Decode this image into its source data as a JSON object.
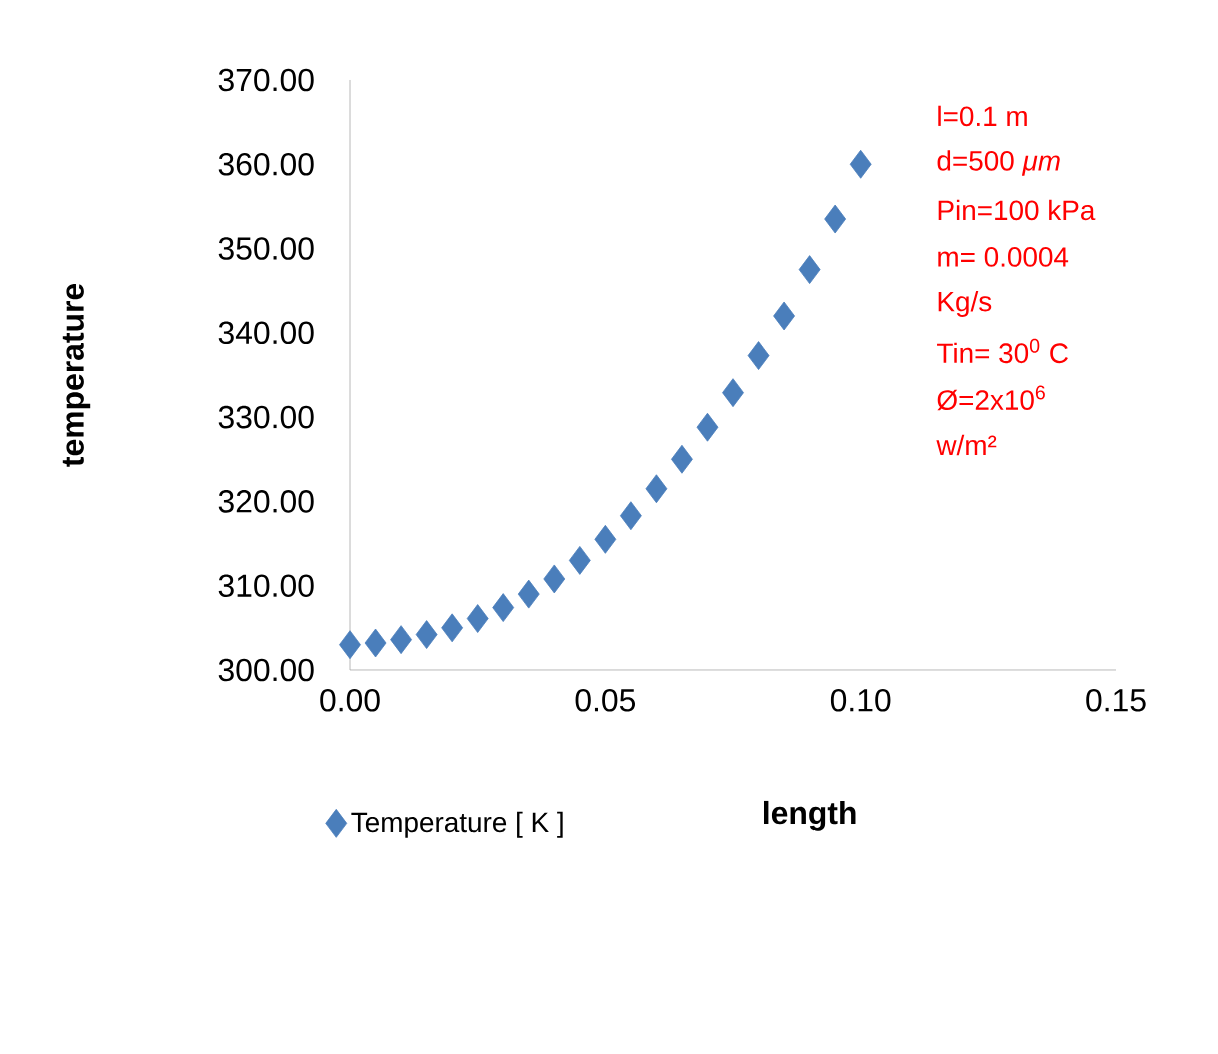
{
  "chart_data": {
    "type": "scatter",
    "xlabel": "length",
    "ylabel": "temperature",
    "x": [
      0,
      0.005,
      0.01,
      0.015,
      0.02,
      0.025,
      0.03,
      0.035,
      0.04,
      0.045,
      0.05,
      0.055,
      0.06,
      0.065,
      0.07,
      0.075,
      0.08,
      0.085,
      0.09,
      0.095,
      0.1
    ],
    "series": [
      {
        "name": "Temperature [ K ]",
        "color": "#4a7ebb",
        "values": [
          303.0,
          303.2,
          303.6,
          304.2,
          305.0,
          306.1,
          307.4,
          309.0,
          310.8,
          313.0,
          315.5,
          318.3,
          321.5,
          325.0,
          328.8,
          332.9,
          337.3,
          342.0,
          347.5,
          353.5,
          360.0
        ]
      }
    ],
    "xlim": [
      0,
      0.15
    ],
    "xticks": [
      {
        "value": 0,
        "label": "0.00"
      },
      {
        "value": 0.05,
        "label": "0.05"
      },
      {
        "value": 0.1,
        "label": "0.10"
      },
      {
        "value": 0.15,
        "label": "0.15"
      }
    ],
    "ylim": [
      300,
      370
    ],
    "yticks": [
      {
        "value": 300,
        "label": "300.00"
      },
      {
        "value": 310,
        "label": "310.00"
      },
      {
        "value": 320,
        "label": "320.00"
      },
      {
        "value": 330,
        "label": "330.00"
      },
      {
        "value": 340,
        "label": "340.00"
      },
      {
        "value": 350,
        "label": "350.00"
      },
      {
        "value": 360,
        "label": "360.00"
      },
      {
        "value": 370,
        "label": "370.00"
      }
    ],
    "marker": "diamond",
    "legend": "bottom",
    "grid": false,
    "annotations": [
      "l=0.1 m",
      "d=500 *μm*",
      "Pin=100 kPa",
      "m= 0.0004",
      "Kg/s",
      "Tin= 30$^{0}$ C",
      "Ø=2x10$^{6}$",
      "w/m²"
    ]
  }
}
